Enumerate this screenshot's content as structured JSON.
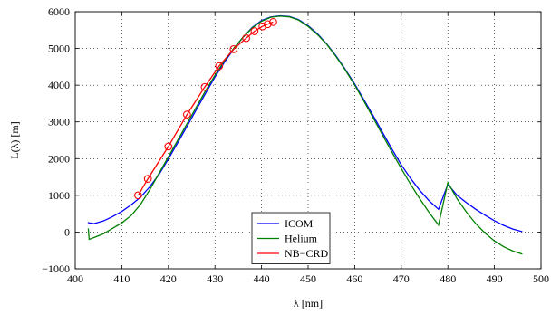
{
  "chart_data": {
    "type": "line",
    "title": "",
    "xlabel": "λ [nm]",
    "ylabel": "L(λ) [m]",
    "xlim": [
      400,
      500
    ],
    "ylim": [
      -1000,
      6000
    ],
    "x_ticks": [
      400,
      410,
      420,
      430,
      440,
      450,
      460,
      470,
      480,
      490,
      500
    ],
    "y_ticks": [
      -1000,
      0,
      1000,
      2000,
      3000,
      4000,
      5000,
      6000
    ],
    "grid": true,
    "legend_position": "bottom-center",
    "series": [
      {
        "name": "ICOM",
        "color": "#0000ff",
        "marker": "none",
        "x": [
          402.7,
          403.0,
          404.0,
          406,
          408,
          410,
          412,
          414,
          416,
          418,
          420,
          422,
          424,
          426,
          428,
          430,
          432,
          434,
          436,
          438,
          440,
          442,
          444,
          446,
          448,
          450,
          452,
          454,
          456,
          458,
          460,
          462,
          464,
          466,
          468,
          470,
          472,
          474,
          476,
          478,
          480,
          482,
          484,
          486,
          488,
          490,
          492,
          494,
          496
        ],
        "y": [
          260,
          250,
          230,
          300,
          420,
          560,
          740,
          950,
          1230,
          1570,
          1990,
          2430,
          2880,
          3330,
          3780,
          4220,
          4620,
          4980,
          5300,
          5570,
          5760,
          5860,
          5890,
          5870,
          5780,
          5620,
          5400,
          5120,
          4800,
          4430,
          4030,
          3600,
          3160,
          2710,
          2260,
          1830,
          1460,
          1130,
          850,
          620,
          1300,
          1000,
          800,
          620,
          460,
          310,
          180,
          80,
          10
        ]
      },
      {
        "name": "Helium",
        "color": "#008000",
        "marker": "none",
        "x": [
          402.8,
          403.0,
          404.0,
          406,
          408,
          410,
          412,
          414,
          416,
          418,
          420,
          422,
          424,
          426,
          428,
          430,
          432,
          434,
          436,
          438,
          440,
          442,
          444,
          446,
          448,
          450,
          452,
          454,
          456,
          458,
          460,
          462,
          464,
          466,
          468,
          470,
          472,
          474,
          476,
          478,
          480,
          482,
          484,
          486,
          488,
          490,
          492,
          494,
          496
        ],
        "y": [
          100,
          -200,
          -150,
          -50,
          100,
          250,
          450,
          750,
          1150,
          1600,
          2050,
          2500,
          2950,
          3400,
          3850,
          4270,
          4660,
          5000,
          5300,
          5560,
          5740,
          5850,
          5880,
          5860,
          5770,
          5600,
          5380,
          5110,
          4780,
          4410,
          4000,
          3560,
          3100,
          2640,
          2180,
          1730,
          1300,
          900,
          530,
          190,
          1350,
          900,
          540,
          230,
          -30,
          -240,
          -400,
          -520,
          -600
        ]
      },
      {
        "name": "NB−CRD",
        "color": "#ff0000",
        "marker": "circle",
        "x": [
          413.5,
          415.6,
          420,
          424,
          427.8,
          430.9,
          434,
          436.7,
          438.5,
          440.2,
          441.3,
          442.5
        ],
        "y": [
          1000,
          1450,
          2330,
          3200,
          3950,
          4520,
          4980,
          5280,
          5470,
          5600,
          5660,
          5720
        ]
      }
    ]
  }
}
